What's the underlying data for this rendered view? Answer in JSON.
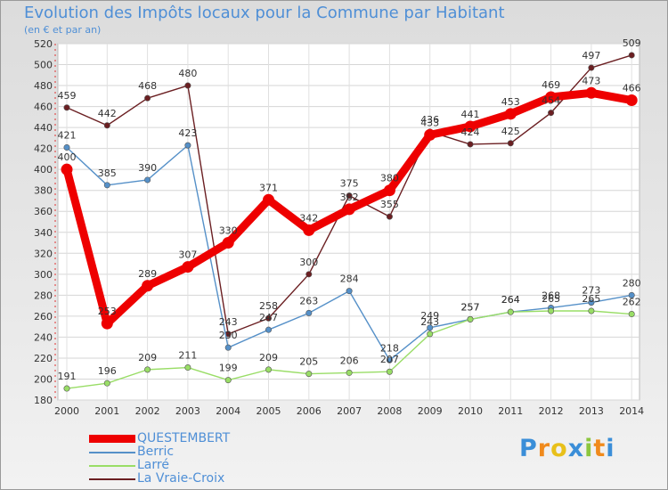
{
  "title": "Evolution des Impôts locaux pour la Commune par Habitant",
  "subtitle": "(en € et par an)",
  "logo_text": "Proxiti",
  "chart_data": {
    "type": "line",
    "title": "Evolution des Impôts locaux pour la Commune par Habitant",
    "subtitle": "(en € et par an)",
    "xlabel": "",
    "ylabel": "",
    "ylim": [
      180,
      520
    ],
    "yticks": [
      180,
      200,
      220,
      240,
      260,
      280,
      300,
      320,
      340,
      360,
      380,
      400,
      420,
      440,
      460,
      480,
      500,
      520
    ],
    "x": [
      "2000",
      "2001",
      "2002",
      "2003",
      "2004",
      "2005",
      "2006",
      "2007",
      "2008",
      "2009",
      "2010",
      "2011",
      "2012",
      "2013",
      "2014"
    ],
    "series": [
      {
        "name": "QUESTEMBERT",
        "color": "#ee0000",
        "values": [
          400,
          253,
          289,
          307,
          330,
          371,
          342,
          362,
          380,
          433,
          441,
          453,
          469,
          473,
          466
        ]
      },
      {
        "name": "Berric",
        "color": "#5590c8",
        "values": [
          421,
          385,
          390,
          423,
          230,
          247,
          263,
          284,
          218,
          249,
          257,
          264,
          268,
          273,
          280
        ]
      },
      {
        "name": "Larré",
        "color": "#99dd66",
        "values": [
          191,
          196,
          209,
          211,
          199,
          209,
          205,
          206,
          207,
          243,
          257,
          264,
          265,
          265,
          262
        ]
      },
      {
        "name": "La Vraie-Croix",
        "color": "#6b1f22",
        "values": [
          459,
          442,
          468,
          480,
          243,
          258,
          300,
          375,
          355,
          436,
          424,
          425,
          454,
          497,
          509
        ]
      }
    ],
    "legend_position": "bottom-left"
  }
}
